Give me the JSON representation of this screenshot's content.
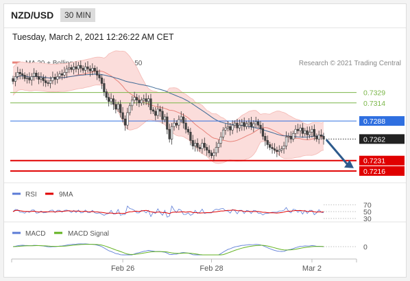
{
  "header": {
    "pair": "NZD/USD",
    "timeframe": "30 MIN"
  },
  "date_line": "Tuesday, March 2, 2021 12:26:22 AM CET",
  "colors": {
    "ma20": "#e8837a",
    "ma50": "#3e6a96",
    "band_fill": "#fbdddb",
    "up": "#ffffff",
    "down": "#444444",
    "support": "#e00000",
    "resistance": "#7ab648",
    "pivot": "#2f6fe0",
    "current": "#222222",
    "rsi": "#5b7bd6",
    "rsi_ma": "#e00000",
    "macd": "#5b7bd6",
    "macd_signal": "#62b21f"
  },
  "chart_data": [
    {
      "type": "candlestick",
      "legend": [
        {
          "label": "MA 20 + Bollinger Bands",
          "color": "#e8837a"
        },
        {
          "label": "MA 50",
          "color": "#3e6a96"
        }
      ],
      "credit": "Research © 2021 Trading Central",
      "ylim": [
        0.7205,
        0.7385
      ],
      "x_ticks": [
        {
          "label": "Feb 26",
          "index": 47
        },
        {
          "label": "Feb 28",
          "index": 85
        },
        {
          "label": "Mar 2",
          "index": 128
        }
      ],
      "levels": [
        {
          "value": 0.7329,
          "label": "0.7329",
          "kind": "resistance"
        },
        {
          "value": 0.7314,
          "label": "0.7314",
          "kind": "resistance"
        },
        {
          "value": 0.7288,
          "label": "0.7288",
          "kind": "pivot"
        },
        {
          "value": 0.7262,
          "label": "0.7262",
          "kind": "current"
        },
        {
          "value": 0.7231,
          "label": "0.7231",
          "kind": "support"
        },
        {
          "value": 0.7216,
          "label": "0.7216",
          "kind": "support"
        }
      ],
      "forecast_arrow": {
        "from": 0.7262,
        "to": 0.7225,
        "direction": "down"
      },
      "close_series": [
        0.7345,
        0.7352,
        0.7358,
        0.7356,
        0.7354,
        0.7349,
        0.735,
        0.7347,
        0.7352,
        0.7357,
        0.7352,
        0.7348,
        0.735,
        0.7346,
        0.7343,
        0.7342,
        0.7346,
        0.7351,
        0.7348,
        0.7352,
        0.7356,
        0.7354,
        0.7358,
        0.7363,
        0.7365,
        0.7362,
        0.7366,
        0.7363,
        0.7368,
        0.7364,
        0.7361,
        0.7366,
        0.7363,
        0.736,
        0.7364,
        0.736,
        0.7354,
        0.735,
        0.7342,
        0.733,
        0.7322,
        0.7316,
        0.732,
        0.7312,
        0.7305,
        0.7312,
        0.73,
        0.7291,
        0.7282,
        0.73,
        0.731,
        0.7318,
        0.7322,
        0.7318,
        0.7314,
        0.7318,
        0.732,
        0.7316,
        0.732,
        0.7304,
        0.7302,
        0.7296,
        0.7305,
        0.7302,
        0.729,
        0.7294,
        0.7276,
        0.7262,
        0.728,
        0.7285,
        0.7282,
        0.729,
        0.7294,
        0.7285,
        0.7276,
        0.7272,
        0.726,
        0.7252,
        0.7256,
        0.725,
        0.7248,
        0.7256,
        0.725,
        0.7246,
        0.7242,
        0.7238,
        0.7242,
        0.725,
        0.7256,
        0.7265,
        0.7275,
        0.7278,
        0.728,
        0.7275,
        0.7282,
        0.7285,
        0.7278,
        0.7282,
        0.7286,
        0.728,
        0.7284,
        0.7286,
        0.728,
        0.7284,
        0.7287,
        0.7282,
        0.7277,
        0.7266,
        0.726,
        0.7254,
        0.725,
        0.7248,
        0.7246,
        0.7244,
        0.7246,
        0.7248,
        0.7252,
        0.7265,
        0.7266,
        0.7262,
        0.727,
        0.7276,
        0.7274,
        0.7278,
        0.727,
        0.7274,
        0.7268,
        0.7272,
        0.7276,
        0.7266,
        0.7262,
        0.7268,
        0.7266,
        0.7262
      ]
    },
    {
      "type": "line",
      "legend": [
        {
          "label": "RSI",
          "color": "#5b7bd6"
        },
        {
          "label": "9MA",
          "color": "#e00000"
        }
      ],
      "y_ticks": [
        "70",
        "50",
        "30"
      ],
      "ylim": [
        20,
        80
      ]
    },
    {
      "type": "line",
      "legend": [
        {
          "label": "MACD",
          "color": "#5b7bd6"
        },
        {
          "label": "MACD Signal",
          "color": "#62b21f"
        }
      ],
      "y_ticks": [
        "0"
      ]
    }
  ]
}
